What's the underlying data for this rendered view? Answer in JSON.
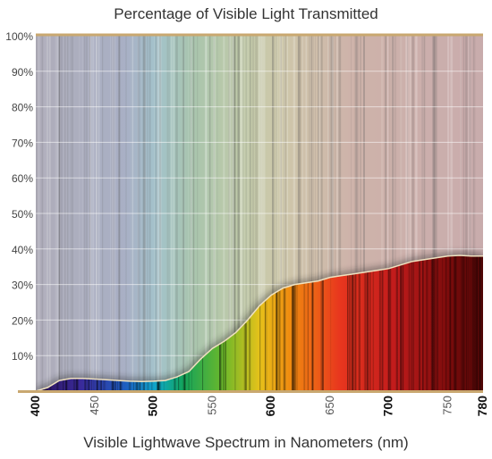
{
  "chart_data": {
    "type": "area",
    "title": "Percentage of Visible Light Transmitted",
    "xlabel": "Visible Lightwave Spectrum in Nanometers (nm)",
    "ylabel": "",
    "xlim": [
      400,
      780
    ],
    "ylim": [
      0,
      100
    ],
    "x_ticks": [
      {
        "value": 400,
        "label": "400",
        "bold": true
      },
      {
        "value": 450,
        "label": "450",
        "bold": false
      },
      {
        "value": 500,
        "label": "500",
        "bold": true
      },
      {
        "value": 550,
        "label": "550",
        "bold": false
      },
      {
        "value": 600,
        "label": "600",
        "bold": true
      },
      {
        "value": 650,
        "label": "650",
        "bold": false
      },
      {
        "value": 700,
        "label": "700",
        "bold": true
      },
      {
        "value": 750,
        "label": "750",
        "bold": false
      },
      {
        "value": 780,
        "label": "780",
        "bold": true
      }
    ],
    "y_ticks": [
      {
        "value": 10,
        "label": "10%"
      },
      {
        "value": 20,
        "label": "20%"
      },
      {
        "value": 30,
        "label": "30%"
      },
      {
        "value": 40,
        "label": "40%"
      },
      {
        "value": 50,
        "label": "50%"
      },
      {
        "value": 60,
        "label": "60%"
      },
      {
        "value": 70,
        "label": "70%"
      },
      {
        "value": 80,
        "label": "80%"
      },
      {
        "value": 90,
        "label": "90%"
      },
      {
        "value": 100,
        "label": "100%"
      }
    ],
    "grid": true,
    "series": [
      {
        "x": [
          400,
          410,
          420,
          430,
          440,
          450,
          460,
          470,
          480,
          490,
          500,
          510,
          520,
          530,
          540,
          550,
          560,
          570,
          580,
          590,
          600,
          610,
          620,
          630,
          640,
          650,
          660,
          670,
          680,
          690,
          700,
          710,
          720,
          730,
          740,
          750,
          760,
          770,
          780
        ],
        "y": [
          0,
          1,
          3,
          3.6,
          3.6,
          3.4,
          3.2,
          3,
          2.8,
          2.7,
          2.8,
          3,
          4,
          5.5,
          9,
          12,
          14,
          16.5,
          20,
          24,
          27,
          29,
          30,
          30.5,
          31,
          32,
          32.5,
          33,
          33.5,
          34,
          34.5,
          35.5,
          36.5,
          37,
          37.5,
          38,
          38.2,
          38,
          38
        ]
      }
    ]
  }
}
